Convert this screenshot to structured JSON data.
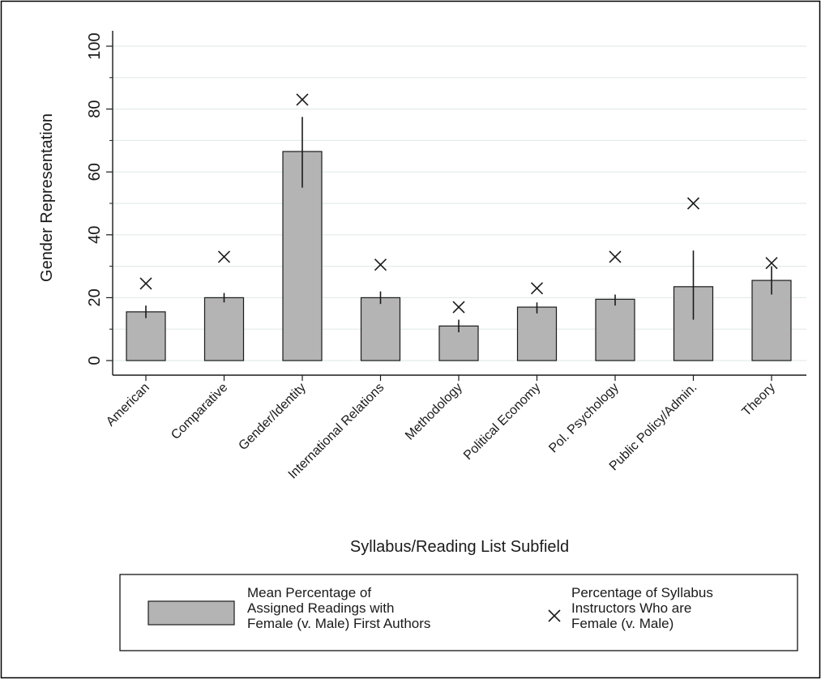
{
  "chart_data": {
    "type": "bar",
    "categories": [
      "American",
      "Comparative",
      "Gender/Identity",
      "International Relations",
      "Methodology",
      "Political Economy",
      "Pol. Psychology",
      "Public Policy/Admin.",
      "Theory"
    ],
    "series": [
      {
        "name": "Mean Percentage of Assigned Readings with Female (v. Male) First Authors",
        "mark": "bar",
        "values": [
          15.5,
          20,
          66.5,
          20,
          11,
          17,
          19.5,
          23.5,
          25.5
        ],
        "error_low": [
          13.5,
          18.5,
          55,
          18,
          9,
          15,
          17.5,
          13,
          21
        ],
        "error_high": [
          17.5,
          21.5,
          77.5,
          22,
          13,
          18.5,
          21,
          35,
          30
        ]
      },
      {
        "name": "Percentage of Syllabus Instructors Who are Female (v. Male)",
        "mark": "x",
        "values": [
          24.5,
          33,
          83,
          30.5,
          17,
          23,
          33,
          50,
          31
        ]
      }
    ],
    "ylabel": "Gender Representation",
    "xlabel": "Syllabus/Reading List Subfield",
    "ylim": [
      0,
      100
    ],
    "yticks": [
      0,
      20,
      40,
      60,
      80,
      100
    ],
    "minor_gridlines": [
      10,
      30,
      50,
      70,
      90
    ],
    "grid": true,
    "legend_position": "bottom",
    "legend_lines": [
      [
        "Mean Percentage of",
        "Assigned Readings with",
        "Female (v. Male) First Authors"
      ],
      [
        "Percentage of Syllabus",
        "Instructors Who are",
        "Female (v. Male)"
      ]
    ],
    "colors": {
      "bar_fill": "#b4b4b4",
      "bar_stroke": "#1a1a1a",
      "gridline": "#e3ebe9",
      "text": "#1a1a1a",
      "border": "#000000"
    }
  }
}
